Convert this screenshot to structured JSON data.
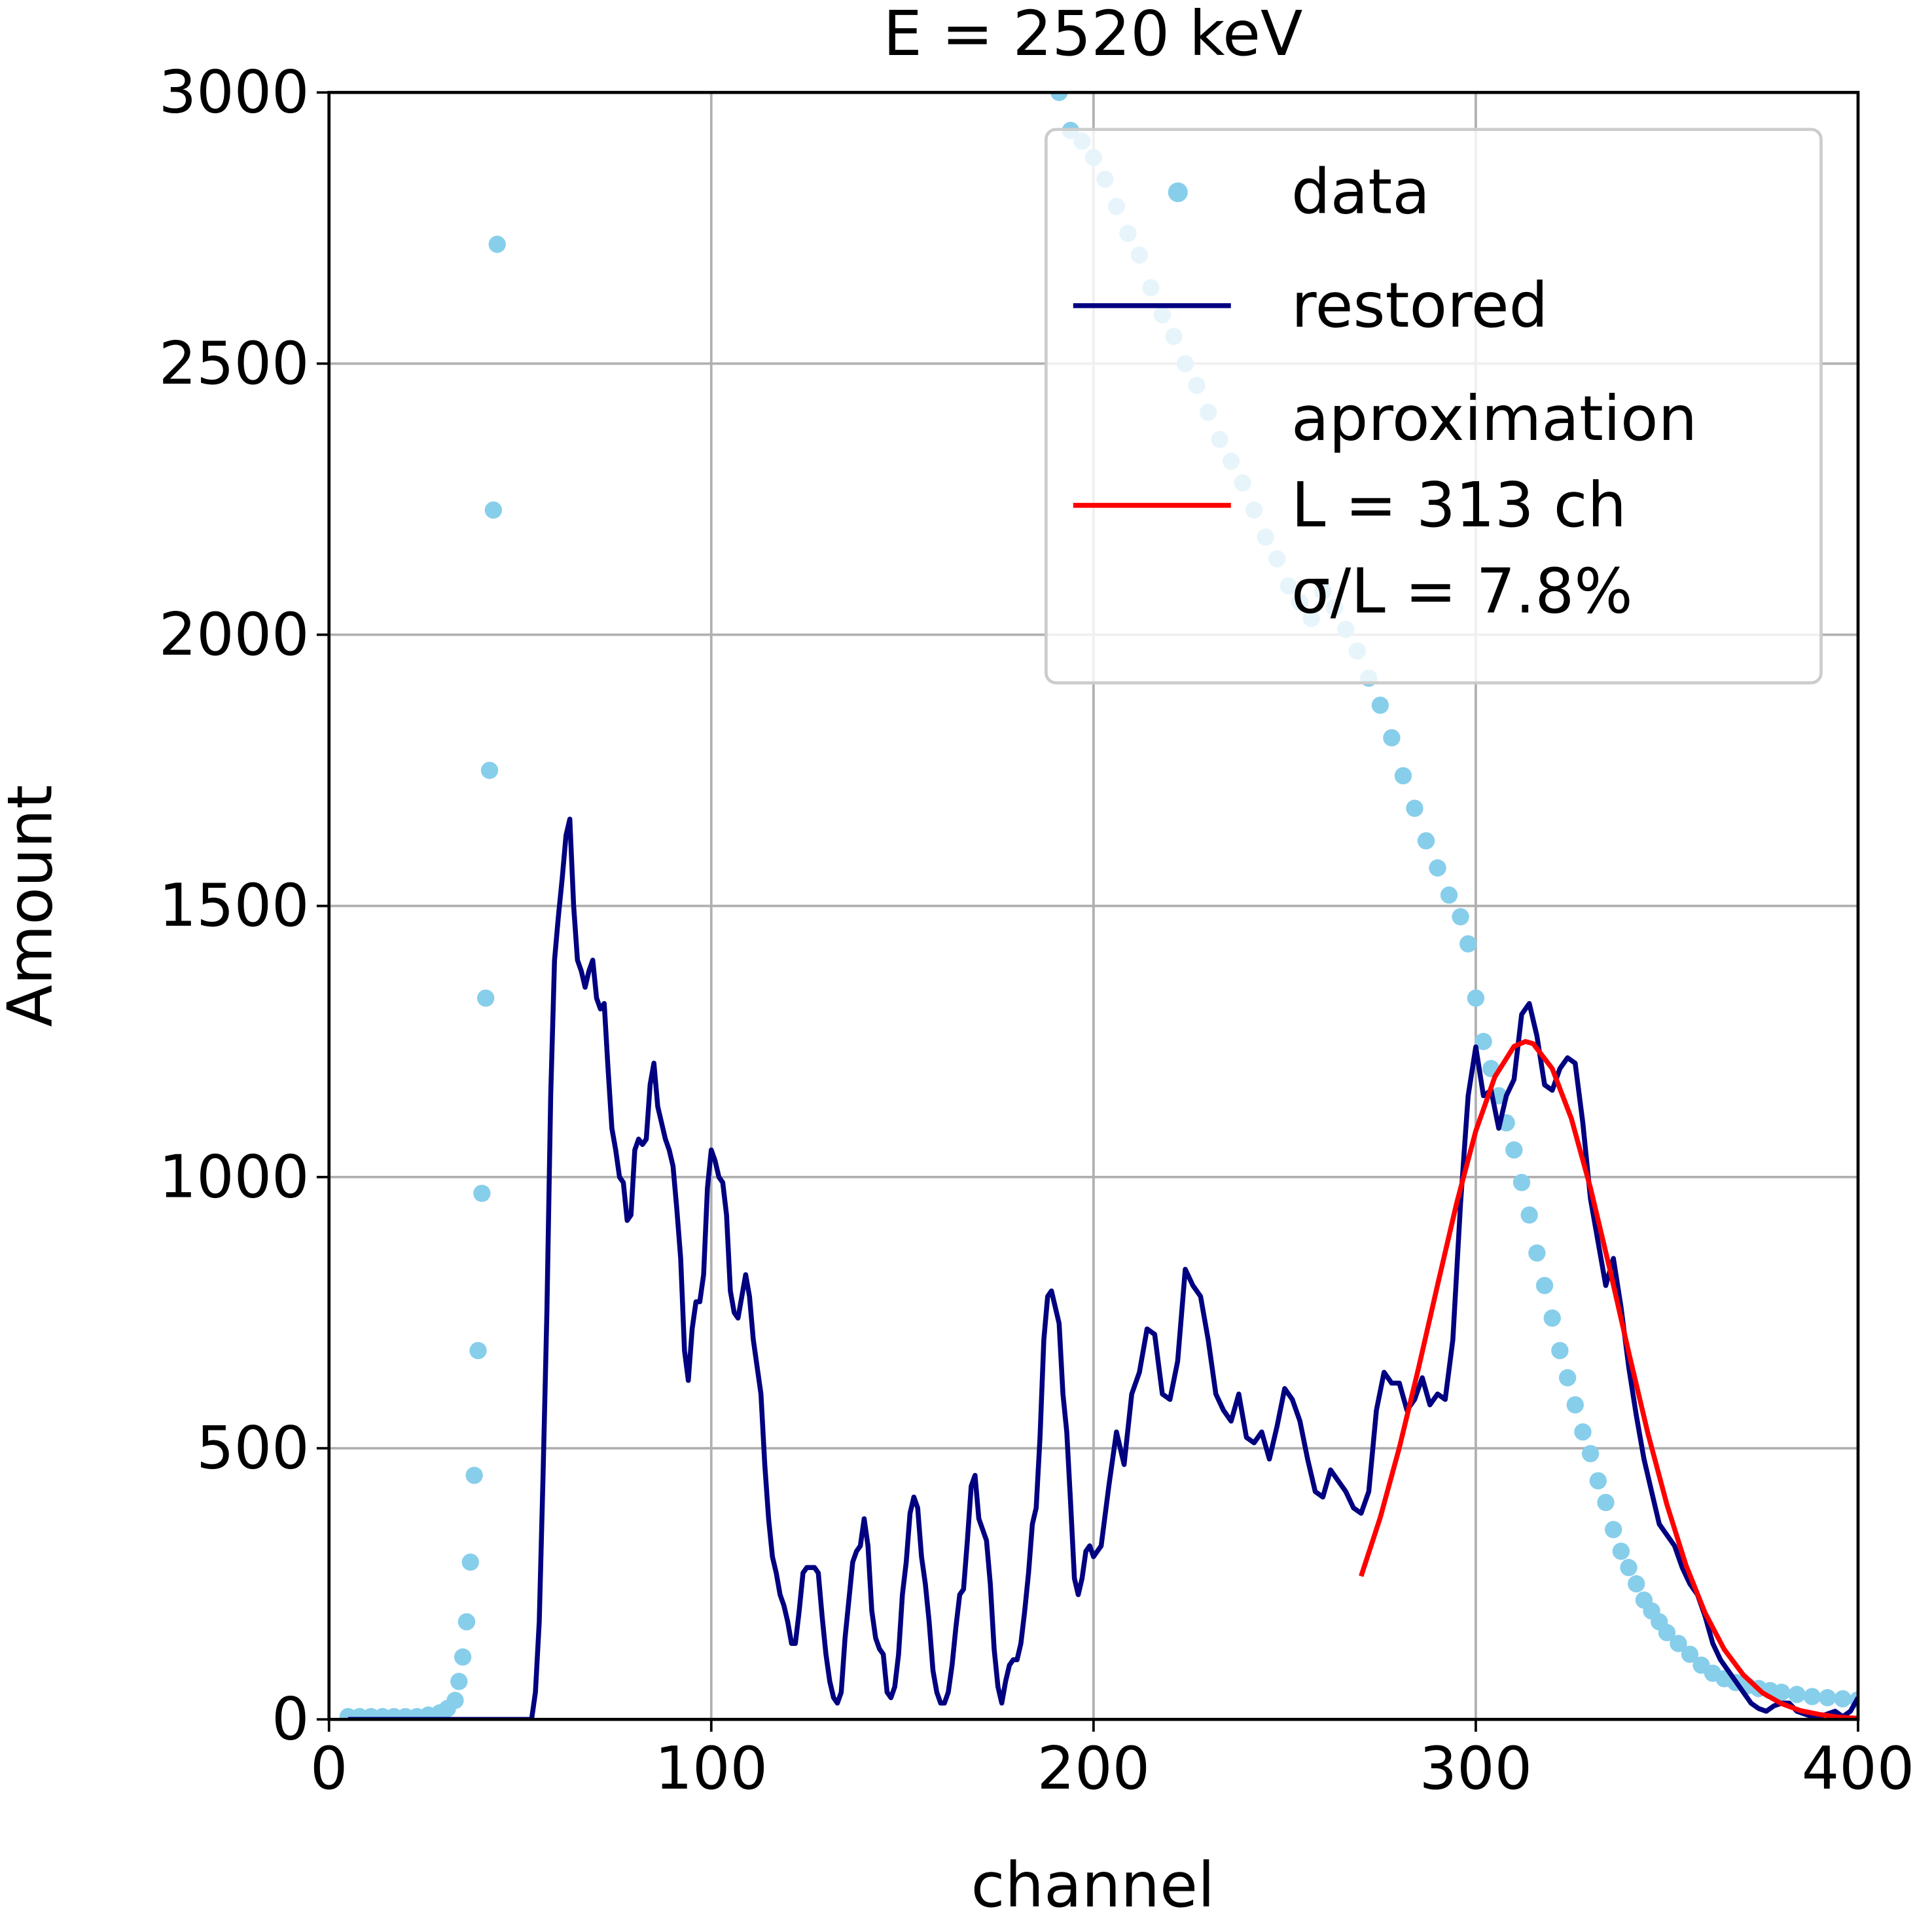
{
  "chart_data": {
    "type": "line",
    "title": "E = 2520 keV",
    "x_label": "channel",
    "y_label": "Amount",
    "xlim": [
      0,
      400
    ],
    "xticks": [
      0,
      100,
      200,
      300,
      400
    ],
    "ylim": [
      0,
      3000
    ],
    "yticks": [
      0,
      500,
      1000,
      1500,
      2000,
      2500,
      3000
    ],
    "grid": true,
    "legend": "upper right",
    "series": [
      {
        "name": "data",
        "type": "scatter",
        "color": "#87ceeb",
        "x": [
          5,
          8,
          11,
          14,
          17,
          20,
          23,
          26,
          29,
          31,
          33,
          34,
          35,
          36,
          37,
          38,
          39,
          40,
          41,
          42,
          43,
          44,
          191,
          194,
          197,
          200,
          203,
          206,
          209,
          212,
          215,
          218,
          221,
          224,
          227,
          230,
          233,
          236,
          239,
          242,
          245,
          248,
          251,
          254,
          257,
          260,
          263,
          266,
          269,
          272,
          275,
          278,
          281,
          284,
          287,
          290,
          293,
          296,
          298,
          300,
          302,
          304,
          306,
          308,
          310,
          312,
          314,
          316,
          318,
          320,
          322,
          324,
          326,
          328,
          330,
          332,
          334,
          336,
          338,
          340,
          342,
          344,
          346,
          348,
          350,
          353,
          356,
          359,
          362,
          365,
          368,
          371,
          374,
          377,
          380,
          384,
          388,
          392,
          396,
          400
        ],
        "values": [
          5,
          5,
          5,
          5,
          5,
          5,
          5,
          8,
          12,
          20,
          35,
          70,
          115,
          180,
          290,
          450,
          680,
          970,
          1330,
          1750,
          2230,
          2720,
          3000,
          2930,
          2910,
          2880,
          2840,
          2790,
          2740,
          2700,
          2640,
          2590,
          2550,
          2500,
          2460,
          2410,
          2360,
          2320,
          2280,
          2230,
          2180,
          2140,
          2090,
          2060,
          2030,
          2080,
          2050,
          2010,
          1970,
          1920,
          1870,
          1810,
          1740,
          1680,
          1620,
          1570,
          1520,
          1480,
          1430,
          1330,
          1250,
          1200,
          1150,
          1100,
          1050,
          990,
          930,
          860,
          800,
          740,
          680,
          630,
          580,
          530,
          490,
          440,
          400,
          350,
          310,
          280,
          250,
          220,
          200,
          180,
          160,
          140,
          120,
          100,
          85,
          75,
          68,
          62,
          57,
          53,
          50,
          46,
          42,
          40,
          38,
          36
        ]
      },
      {
        "name": "restored",
        "type": "line",
        "color": "#000080",
        "x": [
          5,
          53,
          54,
          55,
          56,
          57,
          58,
          59,
          60,
          61,
          62,
          63,
          64,
          65,
          66,
          67,
          68,
          69,
          70,
          71,
          72,
          73,
          74,
          75,
          76,
          77,
          78,
          79,
          80,
          81,
          82,
          83,
          84,
          85,
          86,
          87,
          88,
          89,
          90,
          91,
          92,
          93,
          94,
          95,
          96,
          97,
          98,
          99,
          100,
          101,
          102,
          103,
          104,
          105,
          106,
          107,
          108,
          109,
          110,
          111,
          112,
          113,
          114,
          115,
          116,
          117,
          118,
          119,
          120,
          121,
          122,
          123,
          124,
          125,
          126,
          127,
          128,
          129,
          130,
          131,
          132,
          133,
          134,
          135,
          136,
          137,
          138,
          139,
          140,
          141,
          142,
          143,
          144,
          145,
          146,
          147,
          148,
          149,
          150,
          151,
          152,
          153,
          154,
          155,
          156,
          157,
          158,
          159,
          160,
          161,
          162,
          163,
          164,
          165,
          166,
          167,
          168,
          169,
          170,
          171,
          172,
          173,
          174,
          175,
          176,
          177,
          178,
          179,
          180,
          181,
          182,
          183,
          184,
          185,
          186,
          187,
          188,
          189,
          190,
          191,
          192,
          193,
          194,
          195,
          196,
          197,
          198,
          199,
          200,
          202,
          204,
          206,
          208,
          210,
          212,
          214,
          216,
          218,
          220,
          222,
          224,
          226,
          228,
          230,
          232,
          234,
          236,
          238,
          240,
          242,
          244,
          246,
          248,
          250,
          252,
          254,
          256,
          258,
          260,
          262,
          264,
          266,
          268,
          270,
          272,
          274,
          276,
          278,
          280,
          282,
          284,
          286,
          288,
          290,
          292,
          294,
          296,
          298,
          300,
          302,
          304,
          306,
          308,
          310,
          312,
          314,
          316,
          318,
          320,
          322,
          324,
          326,
          328,
          330,
          332,
          334,
          336,
          338,
          340,
          342,
          344,
          346,
          348,
          350,
          352,
          354,
          356,
          358,
          360,
          362,
          364,
          366,
          368,
          370,
          372,
          374,
          376,
          378,
          380,
          382,
          384,
          386,
          388,
          390,
          392,
          394,
          396,
          398,
          400
        ],
        "values": [
          0,
          0,
          50,
          180,
          450,
          750,
          1150,
          1400,
          1480,
          1550,
          1630,
          1660,
          1500,
          1400,
          1380,
          1350,
          1380,
          1400,
          1330,
          1310,
          1320,
          1200,
          1090,
          1050,
          1000,
          990,
          920,
          930,
          1050,
          1070,
          1060,
          1070,
          1170,
          1210,
          1130,
          1100,
          1070,
          1050,
          1020,
          940,
          850,
          680,
          625,
          720,
          770,
          770,
          820,
          980,
          1050,
          1030,
          1000,
          990,
          930,
          790,
          750,
          740,
          780,
          820,
          780,
          700,
          650,
          600,
          470,
          370,
          300,
          270,
          230,
          210,
          180,
          140,
          140,
          200,
          270,
          280,
          280,
          280,
          270,
          190,
          120,
          70,
          40,
          30,
          50,
          150,
          220,
          290,
          310,
          320,
          370,
          320,
          200,
          150,
          130,
          120,
          50,
          40,
          60,
          120,
          230,
          290,
          380,
          410,
          390,
          300,
          250,
          180,
          90,
          50,
          30,
          30,
          50,
          100,
          170,
          230,
          240,
          330,
          430,
          450,
          370,
          350,
          330,
          250,
          130,
          60,
          30,
          70,
          100,
          110,
          110,
          140,
          200,
          270,
          360,
          390,
          520,
          700,
          780,
          790,
          760,
          730,
          600,
          530,
          400,
          260,
          230,
          260,
          310,
          320,
          300,
          320,
          430,
          530,
          470,
          600,
          640,
          720,
          710,
          600,
          590,
          660,
          830,
          800,
          780,
          700,
          600,
          570,
          550,
          600,
          520,
          510,
          530,
          480,
          540,
          610,
          590,
          550,
          480,
          420,
          410,
          460,
          440,
          420,
          390,
          380,
          420,
          570,
          640,
          620,
          620,
          570,
          590,
          630,
          580,
          600,
          590,
          700,
          950,
          1150,
          1240,
          1150,
          1160,
          1090,
          1150,
          1180,
          1300,
          1320,
          1260,
          1170,
          1160,
          1200,
          1220,
          1210,
          1100,
          960,
          880,
          800,
          850,
          760,
          650,
          560,
          480,
          420,
          360,
          340,
          320,
          280,
          250,
          230,
          190,
          140,
          110,
          90,
          70,
          50,
          30,
          20,
          15,
          25,
          30,
          30,
          15,
          10,
          5,
          5,
          10,
          15,
          5,
          15,
          40
        ]
      },
      {
        "name": "aproximation\nL = 313 ch\nσ/L = 7.8%",
        "type": "line",
        "color": "#ff0000",
        "x": [
          270,
          275,
          280,
          285,
          290,
          295,
          300,
          305,
          310,
          313,
          315,
          320,
          325,
          330,
          335,
          340,
          345,
          350,
          355,
          360,
          365,
          370,
          375,
          380,
          385,
          390,
          395,
          400
        ],
        "values": [
          264,
          372,
          501,
          647,
          801,
          952,
          1085,
          1185,
          1241,
          1250,
          1246,
          1200,
          1108,
          980,
          832,
          677,
          528,
          396,
          284,
          196,
          129,
          82,
          49,
          29,
          16,
          9,
          4,
          2
        ]
      }
    ]
  }
}
